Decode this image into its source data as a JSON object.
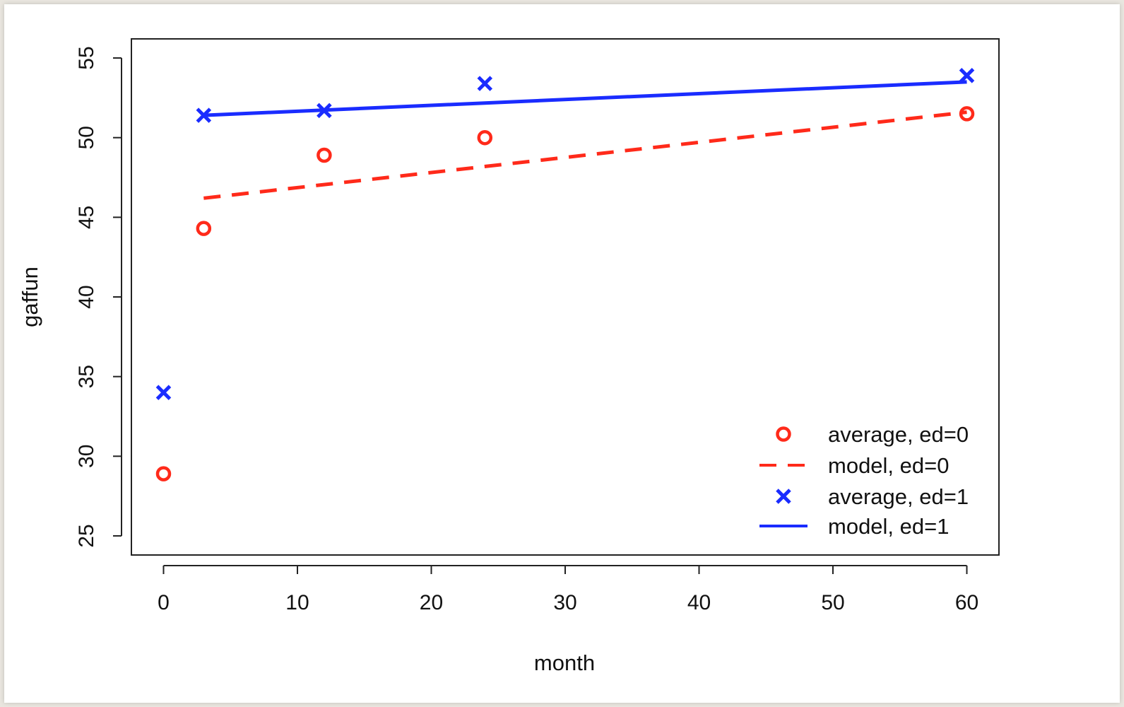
{
  "chart_data": {
    "type": "scatter",
    "xlabel": "month",
    "ylabel": "gaffun",
    "xlim": [
      -2.4,
      62.4
    ],
    "ylim": [
      23.8,
      56.2
    ],
    "xticks": [
      0,
      10,
      20,
      30,
      40,
      50,
      60
    ],
    "yticks": [
      25,
      30,
      35,
      40,
      45,
      50,
      55
    ],
    "grid": false,
    "legend_position": "bottom-right",
    "series": [
      {
        "name": "average, ed=0",
        "kind": "points",
        "marker": "circle",
        "color": "#ff2a1a",
        "x": [
          0,
          3,
          12,
          24,
          60
        ],
        "y": [
          28.9,
          44.3,
          48.9,
          50.0,
          51.5
        ]
      },
      {
        "name": "model, ed=0",
        "kind": "line",
        "dash": "dashed",
        "color": "#ff2a1a",
        "x": [
          3,
          60
        ],
        "y": [
          46.2,
          51.6
        ]
      },
      {
        "name": "average, ed=1",
        "kind": "points",
        "marker": "cross",
        "color": "#1a2cff",
        "x": [
          0,
          3,
          12,
          24,
          60
        ],
        "y": [
          34.0,
          51.4,
          51.7,
          53.4,
          53.9
        ]
      },
      {
        "name": "model, ed=1",
        "kind": "line",
        "dash": "solid",
        "color": "#1a2cff",
        "x": [
          3,
          60
        ],
        "y": [
          51.4,
          53.5
        ]
      }
    ]
  }
}
